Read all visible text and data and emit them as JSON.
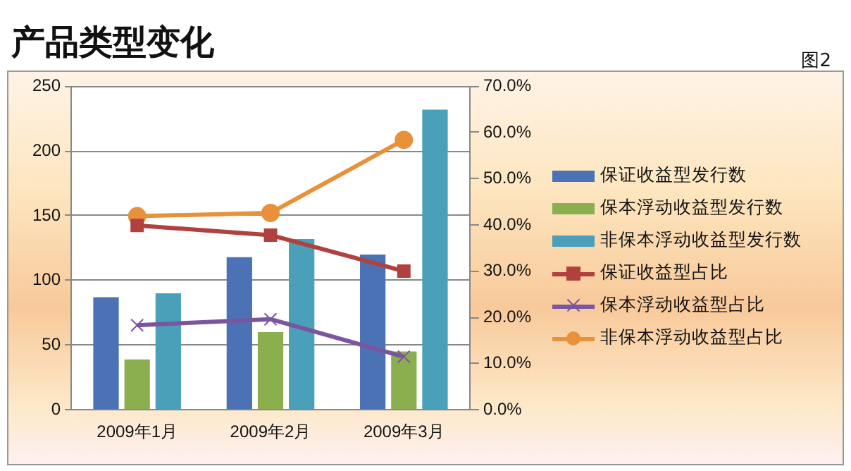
{
  "chart_data": {
    "type": "bar",
    "title": "产品类型变化",
    "subtitle": "图2",
    "categories": [
      "2009年1月",
      "2009年2月",
      "2009年3月"
    ],
    "series": [
      {
        "name": "保证收益型发行数",
        "color": "#4a72b5",
        "values": [
          87,
          118,
          120
        ]
      },
      {
        "name": "保本浮动收益型发行数",
        "color": "#8bae4f",
        "values": [
          39,
          60,
          45
        ]
      },
      {
        "name": "非保本浮动收益型发行数",
        "color": "#4aa0b8",
        "values": [
          90,
          132,
          232
        ]
      },
      {
        "name": "保证收益型占比",
        "type": "line",
        "axis": "y2",
        "marker": "square",
        "color": "#b0413e",
        "values": [
          39.9,
          37.8,
          30.0
        ]
      },
      {
        "name": "保本浮动收益型占比",
        "type": "line",
        "axis": "y2",
        "marker": "cross",
        "color": "#7a55a0",
        "values": [
          18.3,
          19.6,
          11.5
        ]
      },
      {
        "name": "非保本浮动收益型占比",
        "type": "line",
        "axis": "y2",
        "marker": "circle",
        "color": "#e8913a",
        "values": [
          41.9,
          42.6,
          58.4
        ]
      }
    ],
    "ylim": [
      0,
      250
    ],
    "yticks": [
      0,
      50,
      100,
      150,
      200,
      250
    ],
    "y2lim": [
      0,
      70
    ],
    "y2ticks": [
      {
        "value": 0,
        "label": "0.0%"
      },
      {
        "value": 10,
        "label": "10.0%"
      },
      {
        "value": 20,
        "label": "20.0%"
      },
      {
        "value": 30,
        "label": "30.0%"
      },
      {
        "value": 40,
        "label": "40.0%"
      },
      {
        "value": 50,
        "label": "50.0%"
      },
      {
        "value": 60,
        "label": "60.0%"
      },
      {
        "value": 70,
        "label": "70.0%"
      }
    ],
    "grid": "y",
    "legend": "right",
    "line_style": "solid"
  }
}
